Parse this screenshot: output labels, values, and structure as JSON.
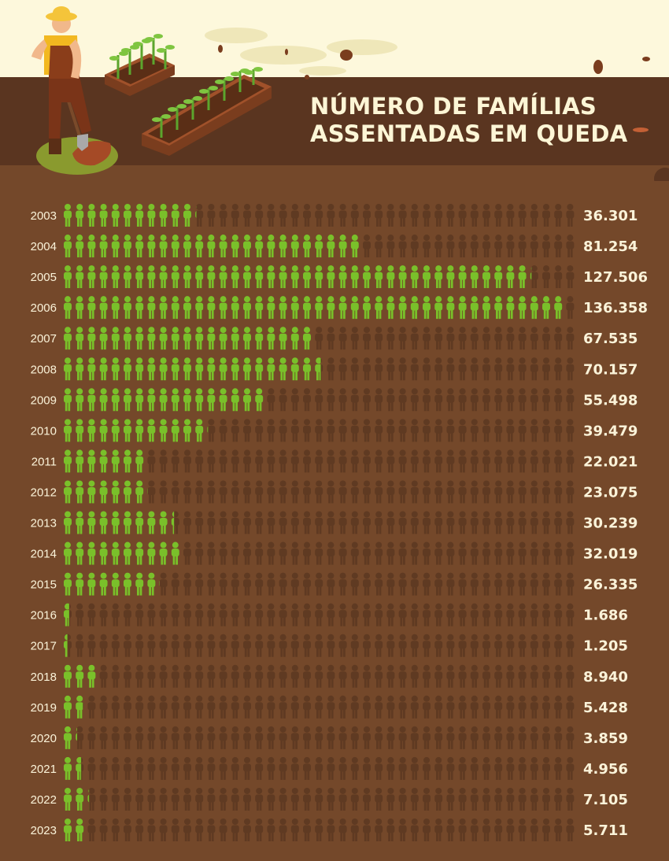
{
  "title": {
    "line1": "NÚMERO DE FAMÍLIAS",
    "line2": "ASSENTADAS EM QUEDA"
  },
  "colors": {
    "filled": "#7ac02a",
    "empty": "#5f3a22",
    "background": "#74482a",
    "header_band": "#5a3520",
    "sky": "#fdf8dc",
    "label": "#fbf3d9"
  },
  "icon": "person-icon",
  "chart_data": {
    "type": "bar",
    "title": "NÚMERO DE FAMÍLIAS ASSENTADAS EM QUEDA",
    "categories": [
      "2003",
      "2004",
      "2005",
      "2006",
      "2007",
      "2008",
      "2009",
      "2010",
      "2011",
      "2012",
      "2013",
      "2014",
      "2015",
      "2016",
      "2017",
      "2018",
      "2019",
      "2020",
      "2021",
      "2022",
      "2023"
    ],
    "values": [
      36301,
      81254,
      127506,
      136358,
      67535,
      70157,
      55498,
      39479,
      22021,
      23075,
      30239,
      32019,
      26335,
      1686,
      1205,
      8940,
      5428,
      3859,
      4956,
      7105,
      5711
    ],
    "value_labels": [
      "36.301",
      "81.254",
      "127.506",
      "136.358",
      "67.535",
      "70.157",
      "55.498",
      "39.479",
      "22.021",
      "23.075",
      "30.239",
      "32.019",
      "26.335",
      "1.686",
      "1.205",
      "8.940",
      "5.428",
      "3.859",
      "4.956",
      "7.105",
      "5.711"
    ],
    "xlim": [
      0,
      140000
    ]
  }
}
